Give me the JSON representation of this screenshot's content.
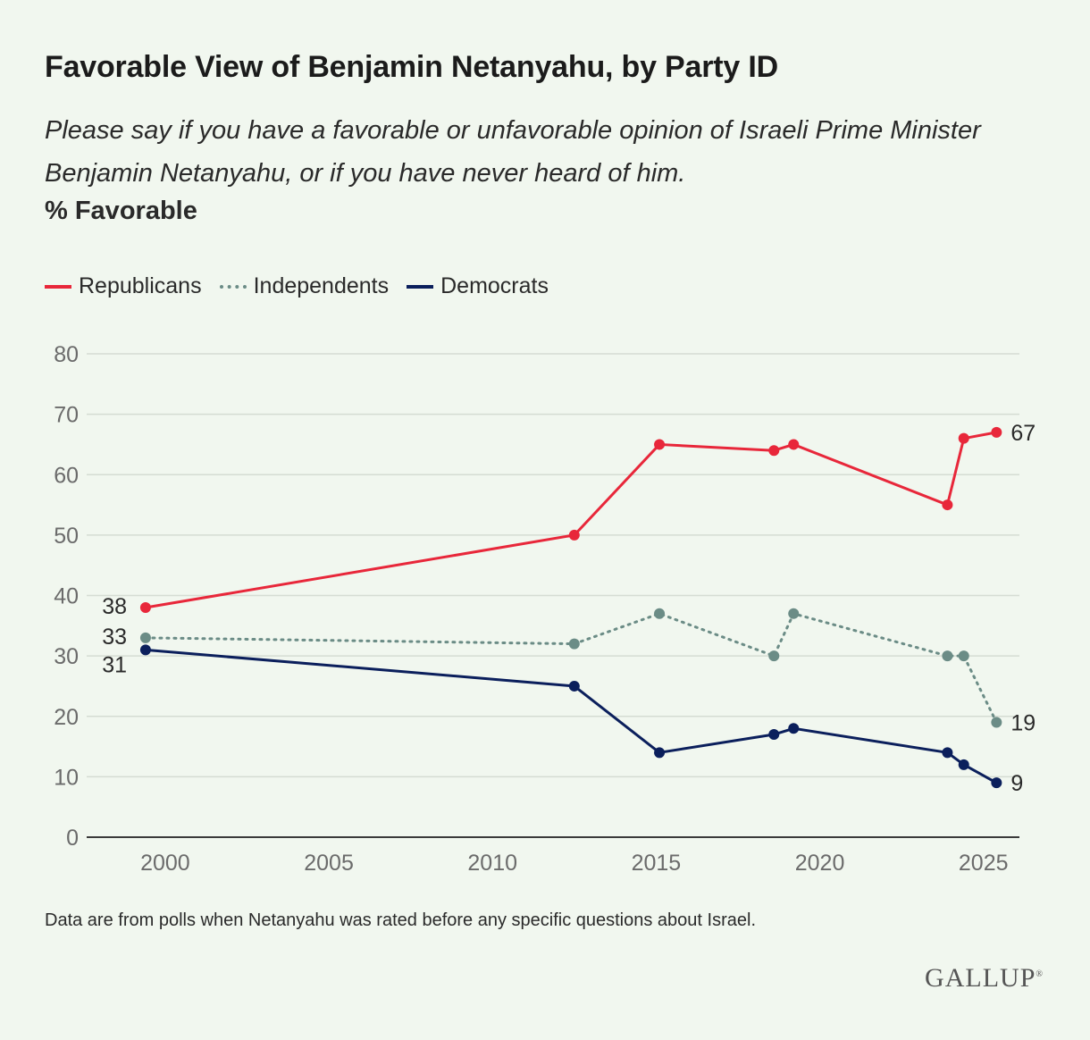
{
  "header": {
    "title": "Favorable View of Benjamin Netanyahu, by Party ID",
    "subtitle": "Please say if you have a favorable or unfavorable opinion of Israeli Prime Minister Benjamin Netanyahu, or if you have never heard of him.",
    "measure": "% Favorable"
  },
  "footer": {
    "note": "Data are from polls when Netanyahu was rated before any specific questions about Israel.",
    "logo": "GALLUP"
  },
  "colors": {
    "republicans": "#e8273a",
    "independents": "#6b8c86",
    "democrats": "#0b1f5c",
    "grid": "#d5dcd3",
    "axis": "#3a3a3a",
    "tick_text": "#6b6b6b"
  },
  "chart_data": {
    "type": "line",
    "title": "Favorable View of Benjamin Netanyahu, by Party ID",
    "ylabel": "% Favorable",
    "xlabel": "",
    "ylim": [
      0,
      80
    ],
    "xlim": [
      1997.6,
      2026.1
    ],
    "y_ticks": [
      0,
      10,
      20,
      30,
      40,
      50,
      60,
      70,
      80
    ],
    "x_ticks": [
      2000,
      2005,
      2010,
      2015,
      2020,
      2025
    ],
    "grid": true,
    "legend_position": "top-left",
    "series": [
      {
        "name": "Republicans",
        "key": "republicans",
        "style": "solid",
        "x": [
          1999.4,
          2012.5,
          2015.1,
          2018.6,
          2019.2,
          2023.9,
          2024.4,
          2025.4
        ],
        "values": [
          38,
          50,
          65,
          64,
          65,
          55,
          66,
          67
        ],
        "start_label": "38",
        "end_label": "67"
      },
      {
        "name": "Independents",
        "key": "independents",
        "style": "dotted",
        "x": [
          1999.4,
          2012.5,
          2015.1,
          2018.6,
          2019.2,
          2023.9,
          2024.4,
          2025.4
        ],
        "values": [
          33,
          32,
          37,
          30,
          37,
          30,
          30,
          19
        ],
        "start_label": "33",
        "end_label": "19"
      },
      {
        "name": "Democrats",
        "key": "democrats",
        "style": "solid",
        "x": [
          1999.4,
          2012.5,
          2015.1,
          2018.6,
          2019.2,
          2023.9,
          2024.4,
          2025.4
        ],
        "values": [
          31,
          25,
          14,
          17,
          18,
          14,
          12,
          9
        ],
        "start_label": "31",
        "end_label": "9"
      }
    ]
  }
}
